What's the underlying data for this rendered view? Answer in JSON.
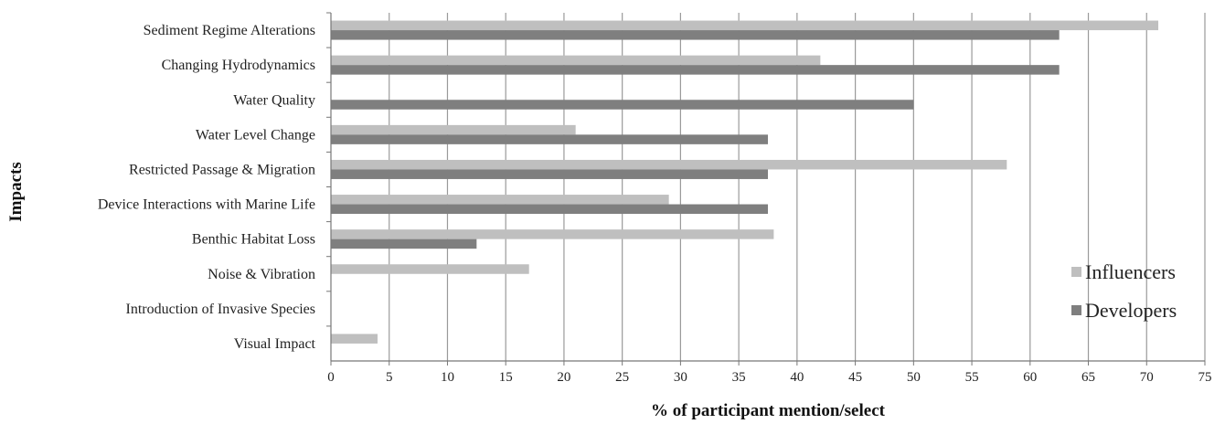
{
  "chart_data": {
    "type": "bar",
    "orientation": "horizontal",
    "xlabel": "% of participant mention/select",
    "ylabel": "Impacts",
    "xlim": [
      0,
      75
    ],
    "xticks": [
      0,
      5,
      10,
      15,
      20,
      25,
      30,
      35,
      40,
      45,
      50,
      55,
      60,
      65,
      70,
      75
    ],
    "grid": "vertical",
    "legend_position": "right",
    "categories": [
      "Sediment Regime Alterations",
      "Changing Hydrodynamics",
      "Water Quality",
      "Water Level Change",
      "Restricted Passage & Migration",
      "Device Interactions with Marine Life",
      "Benthic Habitat Loss",
      "Noise & Vibration",
      "Introduction of Invasive Species",
      "Visual Impact"
    ],
    "series": [
      {
        "name": "Influencers",
        "color": "#bfbfbf",
        "values": [
          71,
          42,
          0,
          21,
          58,
          29,
          38,
          17,
          0,
          4
        ]
      },
      {
        "name": "Developers",
        "color": "#7f7f7f",
        "values": [
          62.5,
          62.5,
          50,
          37.5,
          37.5,
          37.5,
          12.5,
          0,
          0,
          0
        ]
      }
    ]
  }
}
